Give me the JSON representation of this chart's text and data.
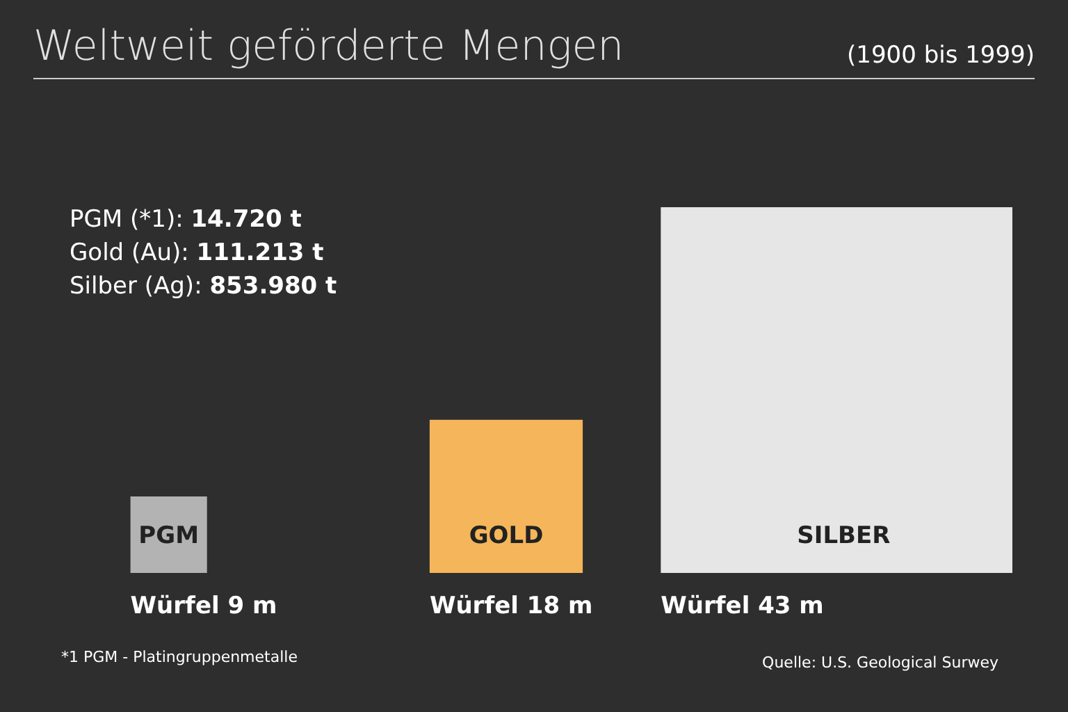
{
  "chart_data": {
    "type": "bar",
    "title": "Weltweit geförderte Mengen",
    "subtitle": "(1900 bis 1999)",
    "categories": [
      "PGM",
      "GOLD",
      "SILBER"
    ],
    "values": [
      9,
      18,
      43
    ],
    "colors": [
      "#b3b3b3",
      "#f5b55a",
      "#e6e6e6"
    ],
    "value_labels": [
      "Würfel 9 m",
      "Würfel 18 m",
      "Würfel 43 m"
    ],
    "annotations": [
      "PGM (*1): 14.720 t",
      "Gold (Au): 111.213 t",
      "Silber (Ag): 853.980 t",
      "*1 PGM - Platingruppenmetalle",
      "Quelle: U.S. Geological Surwey"
    ],
    "legend": false
  }
}
